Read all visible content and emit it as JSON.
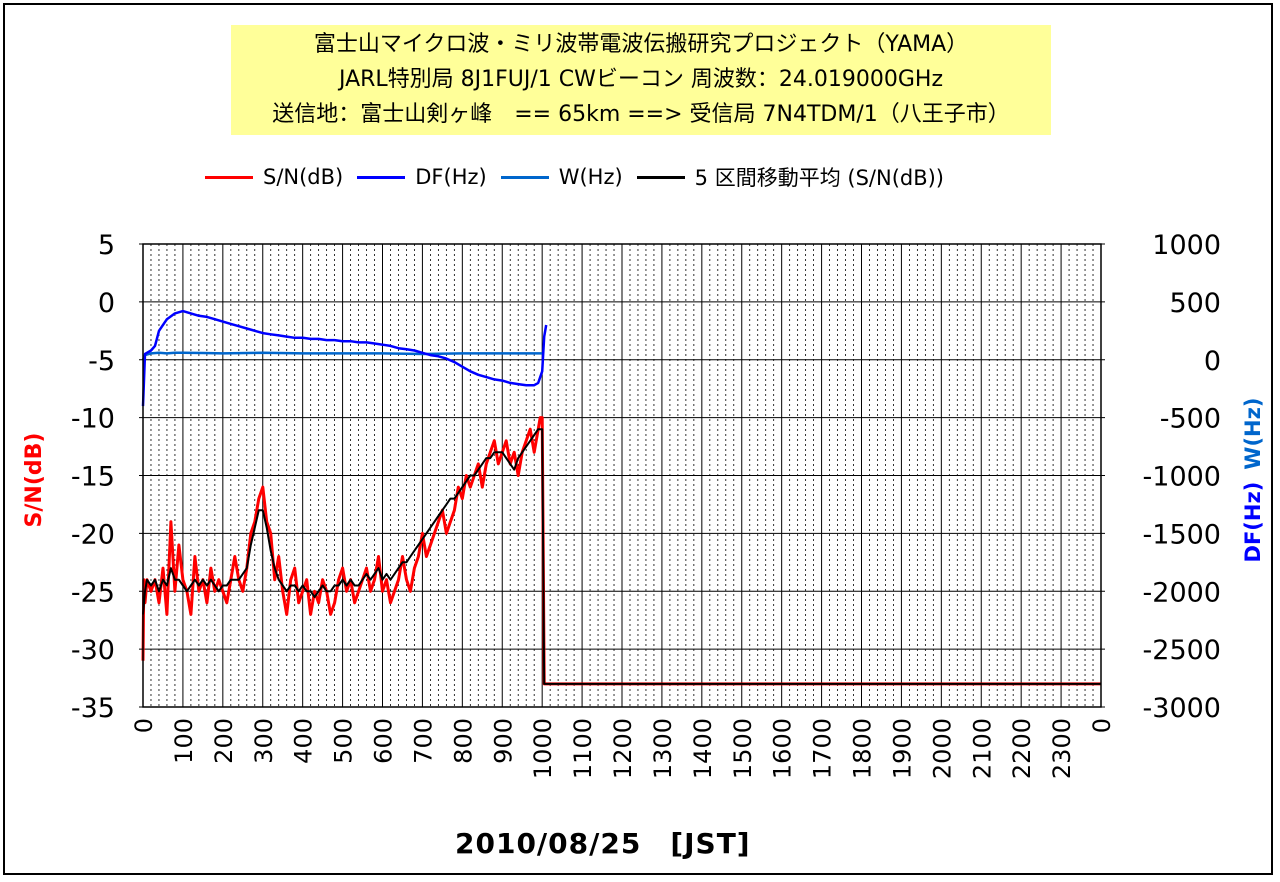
{
  "title_lines": [
    "富士山マイクロ波・ミリ波帯電波伝搬研究プロジェクト（YAMA）",
    "JARL特別局 8J1FUJ/1 CWビーコン 周波数：24.019000GHz",
    "送信地：富士山剣ヶ峰　== 65km ==> 受信局 7N4TDM/1（八王子市）"
  ],
  "legend": [
    {
      "label": "S/N(dB)",
      "color": "#ff0000"
    },
    {
      "label": "DF(Hz)",
      "color": "#0000ff"
    },
    {
      "label": "W(Hz)",
      "color": "#0066cc"
    },
    {
      "label": "5 区間移動平均 (S/N(dB))",
      "color": "#000000"
    }
  ],
  "colors": {
    "sn": "#ff0000",
    "df": "#0000ff",
    "w": "#0066cc",
    "ma": "#000000"
  },
  "chart_data": {
    "type": "line",
    "title": "",
    "xlabel": "2010/08/25　[JST]",
    "ylabel_left": "S/N(dB)",
    "ylabel_right_df": "DF(Hz)",
    "ylabel_right_w": "W(Hz)",
    "xlim": [
      0,
      2400
    ],
    "xticks": [
      "0",
      "100",
      "200",
      "300",
      "400",
      "500",
      "600",
      "700",
      "800",
      "900",
      "1000",
      "1100",
      "1200",
      "1300",
      "1400",
      "1500",
      "1600",
      "1700",
      "1800",
      "1900",
      "2000",
      "2100",
      "2200",
      "2300",
      "0"
    ],
    "ylim_left": [
      -35,
      5
    ],
    "yticks_left": [
      "5",
      "0",
      "-5",
      "-10",
      "-15",
      "-20",
      "-25",
      "-30",
      "-35"
    ],
    "ylim_right": [
      -3000,
      1000
    ],
    "yticks_right": [
      "1000",
      "500",
      "0",
      "-500",
      "-1000",
      "-1500",
      "-2000",
      "-2500",
      "-3000"
    ],
    "grid": "vertical dotted every 20, solid every 100; horizontal every 5 dB",
    "series": [
      {
        "name": "S/N(dB)",
        "axis": "left",
        "x": [
          0,
          2,
          5,
          10,
          20,
          30,
          40,
          50,
          60,
          70,
          80,
          90,
          100,
          110,
          120,
          130,
          140,
          150,
          160,
          170,
          180,
          190,
          200,
          210,
          220,
          230,
          240,
          250,
          260,
          270,
          280,
          290,
          300,
          310,
          320,
          330,
          340,
          350,
          360,
          370,
          380,
          390,
          400,
          410,
          420,
          430,
          440,
          450,
          460,
          470,
          480,
          490,
          500,
          510,
          520,
          530,
          540,
          550,
          560,
          570,
          580,
          590,
          600,
          610,
          620,
          630,
          640,
          650,
          660,
          670,
          680,
          690,
          700,
          710,
          720,
          730,
          740,
          750,
          760,
          770,
          780,
          790,
          800,
          810,
          820,
          830,
          840,
          850,
          860,
          870,
          880,
          890,
          900,
          910,
          920,
          930,
          940,
          950,
          960,
          970,
          980,
          990,
          995,
          1000,
          1005,
          1010,
          2400
        ],
        "y": [
          -31,
          -24,
          -26,
          -24,
          -25,
          -24,
          -26,
          -23,
          -27,
          -19,
          -25,
          -21,
          -24,
          -25,
          -27,
          -22,
          -25,
          -24,
          -26,
          -23,
          -25,
          -24,
          -25,
          -26,
          -24,
          -22,
          -24,
          -25,
          -23,
          -20,
          -19,
          -17,
          -16,
          -19,
          -20,
          -24,
          -22,
          -25,
          -27,
          -24,
          -23,
          -26,
          -25,
          -24,
          -27,
          -25,
          -26,
          -24,
          -25,
          -27,
          -26,
          -24,
          -23,
          -25,
          -24,
          -26,
          -25,
          -24,
          -23,
          -25,
          -24,
          -22,
          -25,
          -24,
          -26,
          -25,
          -24,
          -22,
          -24,
          -25,
          -23,
          -22,
          -20,
          -22,
          -21,
          -20,
          -19,
          -18,
          -20,
          -19,
          -18,
          -16,
          -17,
          -15,
          -16,
          -15,
          -14,
          -16,
          -14,
          -13,
          -12,
          -14,
          -13,
          -12,
          -14,
          -13,
          -15,
          -13,
          -12,
          -11,
          -13,
          -11,
          -10,
          -10,
          -33,
          -33,
          -33
        ]
      },
      {
        "name": "DF(Hz)",
        "axis": "right",
        "x": [
          0,
          5,
          10,
          20,
          30,
          40,
          60,
          80,
          100,
          120,
          140,
          160,
          180,
          200,
          220,
          240,
          260,
          280,
          300,
          320,
          340,
          360,
          380,
          400,
          420,
          440,
          460,
          480,
          500,
          520,
          540,
          560,
          580,
          600,
          620,
          640,
          660,
          680,
          700,
          720,
          740,
          760,
          780,
          800,
          820,
          840,
          860,
          880,
          900,
          920,
          940,
          960,
          980,
          990,
          1000,
          1005,
          1010
        ],
        "y": [
          -400,
          50,
          60,
          80,
          120,
          250,
          350,
          400,
          420,
          400,
          380,
          370,
          350,
          330,
          310,
          290,
          270,
          250,
          230,
          220,
          210,
          200,
          190,
          190,
          180,
          180,
          170,
          170,
          160,
          160,
          150,
          150,
          140,
          130,
          120,
          100,
          90,
          80,
          60,
          40,
          30,
          10,
          -20,
          -60,
          -100,
          -130,
          -150,
          -170,
          -180,
          -200,
          -210,
          -220,
          -220,
          -200,
          -100,
          200,
          300
        ]
      },
      {
        "name": "W(Hz)",
        "axis": "right",
        "x": [
          0,
          5,
          20,
          40,
          60,
          80,
          100,
          150,
          200,
          300,
          400,
          500,
          600,
          700,
          800,
          900,
          1000
        ],
        "y": [
          0,
          40,
          55,
          60,
          55,
          60,
          60,
          58,
          55,
          60,
          55,
          55,
          55,
          50,
          55,
          55,
          55
        ]
      },
      {
        "name": "5 区間移動平均 (S/N(dB))",
        "axis": "left",
        "x": [
          0,
          5,
          10,
          20,
          30,
          40,
          50,
          60,
          70,
          80,
          90,
          100,
          110,
          120,
          130,
          140,
          150,
          160,
          170,
          180,
          190,
          200,
          210,
          220,
          230,
          240,
          250,
          260,
          270,
          280,
          290,
          300,
          310,
          320,
          330,
          340,
          350,
          360,
          370,
          380,
          390,
          400,
          410,
          420,
          430,
          440,
          450,
          460,
          470,
          480,
          490,
          500,
          510,
          520,
          530,
          540,
          550,
          560,
          570,
          580,
          590,
          600,
          610,
          620,
          630,
          640,
          650,
          660,
          670,
          680,
          690,
          700,
          710,
          720,
          730,
          740,
          750,
          760,
          770,
          780,
          790,
          800,
          810,
          820,
          830,
          840,
          850,
          860,
          870,
          880,
          890,
          900,
          910,
          920,
          930,
          940,
          950,
          960,
          970,
          980,
          990,
          1000,
          1005,
          1010,
          2400
        ],
        "y": [
          -27,
          -25,
          -24,
          -24.5,
          -24,
          -25,
          -24,
          -24.5,
          -23,
          -24,
          -24,
          -24.5,
          -25,
          -24.5,
          -24,
          -24.5,
          -24,
          -24.5,
          -24,
          -24.5,
          -25,
          -24.5,
          -24.5,
          -24,
          -24,
          -24,
          -23.5,
          -23,
          -21,
          -19.5,
          -18,
          -18,
          -19.5,
          -21.5,
          -23,
          -24,
          -24.5,
          -25,
          -24.5,
          -24.5,
          -25,
          -24.5,
          -25,
          -25,
          -25.5,
          -25,
          -24.5,
          -25,
          -25,
          -24.5,
          -24.5,
          -24,
          -24.5,
          -24,
          -24.5,
          -24.5,
          -24,
          -23.5,
          -24,
          -23.5,
          -23,
          -24,
          -23.5,
          -24,
          -23.5,
          -23,
          -22.5,
          -22.5,
          -22,
          -21.5,
          -21,
          -20.5,
          -20,
          -19.5,
          -19,
          -18.5,
          -18,
          -17.5,
          -17,
          -17,
          -16.5,
          -16,
          -15.5,
          -15,
          -15,
          -14.5,
          -14,
          -13.5,
          -13.5,
          -13,
          -13,
          -13,
          -13.5,
          -14,
          -14.5,
          -13.5,
          -13,
          -12.5,
          -12,
          -11.5,
          -11,
          -11,
          -33,
          -33,
          -33
        ]
      }
    ]
  }
}
